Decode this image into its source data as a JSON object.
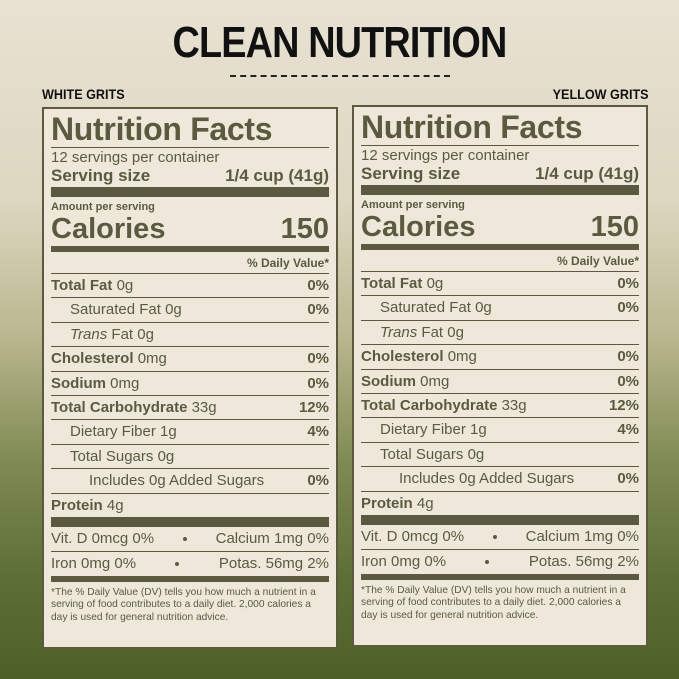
{
  "title": "CLEAN NUTRITION",
  "panels": [
    {
      "label": "WHITE GRITS",
      "heading": "Nutrition Facts",
      "servings": "12 servings per container",
      "serving_size_label": "Serving size",
      "serving_size": "1/4 cup (41g)",
      "amount_label": "Amount per serving",
      "calories_label": "Calories",
      "calories": 150,
      "dv_header": "% Daily Value*",
      "rows": [
        {
          "name": "Total Fat",
          "amount": "0g",
          "dv": "0%",
          "bold": true,
          "indent": 0
        },
        {
          "name": "Saturated Fat",
          "amount": "0g",
          "dv": "0%",
          "bold": false,
          "indent": 1
        },
        {
          "italic_prefix": "Trans",
          "name": "Fat",
          "amount": "0g",
          "bold": false,
          "indent": 1
        },
        {
          "name": "Cholesterol",
          "amount": "0mg",
          "dv": "0%",
          "bold": true,
          "indent": 0
        },
        {
          "name": "Sodium",
          "amount": "0mg",
          "dv": "0%",
          "bold": true,
          "indent": 0
        },
        {
          "name": "Total Carbohydrate",
          "amount": "33g",
          "dv": "12%",
          "bold": true,
          "indent": 0
        },
        {
          "name": "Dietary Fiber",
          "amount": "1g",
          "dv": "4%",
          "bold": false,
          "indent": 1
        },
        {
          "name": "Total Sugars",
          "amount": "0g",
          "bold": false,
          "indent": 1
        },
        {
          "name": "Includes 0g Added Sugars",
          "dv": "0%",
          "bold": false,
          "indent": 2
        },
        {
          "name": "Protein",
          "amount": "4g",
          "bold": true,
          "indent": 0
        }
      ],
      "vitamins": [
        [
          "Vit. D 0mcg 0%",
          "Calcium 1mg 0%"
        ],
        [
          "Iron 0mg 0%",
          "Potas. 56mg 2%"
        ]
      ],
      "footnote": "*The % Daily Value (DV) tells you how much a nutrient in a serving of food contributes to a daily diet. 2,000 calories a day is used for general nutrition advice."
    },
    {
      "label": "YELLOW GRITS",
      "heading": "Nutrition Facts",
      "servings": "12 servings per container",
      "serving_size_label": "Serving size",
      "serving_size": "1/4 cup (41g)",
      "amount_label": "Amount per serving",
      "calories_label": "Calories",
      "calories": 150,
      "dv_header": "% Daily Value*",
      "rows": [
        {
          "name": "Total Fat",
          "amount": "0g",
          "dv": "0%",
          "bold": true,
          "indent": 0
        },
        {
          "name": "Saturated Fat",
          "amount": "0g",
          "dv": "0%",
          "bold": false,
          "indent": 1
        },
        {
          "italic_prefix": "Trans",
          "name": "Fat",
          "amount": "0g",
          "bold": false,
          "indent": 1
        },
        {
          "name": "Cholesterol",
          "amount": "0mg",
          "dv": "0%",
          "bold": true,
          "indent": 0
        },
        {
          "name": "Sodium",
          "amount": "0mg",
          "dv": "0%",
          "bold": true,
          "indent": 0
        },
        {
          "name": "Total Carbohydrate",
          "amount": "33g",
          "dv": "12%",
          "bold": true,
          "indent": 0
        },
        {
          "name": "Dietary Fiber",
          "amount": "1g",
          "dv": "4%",
          "bold": false,
          "indent": 1
        },
        {
          "name": "Total Sugars",
          "amount": "0g",
          "bold": false,
          "indent": 1
        },
        {
          "name": "Includes 0g Added Sugars",
          "dv": "0%",
          "bold": false,
          "indent": 2
        },
        {
          "name": "Protein",
          "amount": "4g",
          "bold": true,
          "indent": 0
        }
      ],
      "vitamins": [
        [
          "Vit. D 0mcg 0%",
          "Calcium 1mg 0%"
        ],
        [
          "Iron 0mg 0%",
          "Potas. 56mg 2%"
        ]
      ],
      "footnote": "*The % Daily Value (DV) tells you how much a nutrient in a serving of food contributes to a daily diet. 2,000 calories a day is used for general nutrition advice."
    }
  ]
}
